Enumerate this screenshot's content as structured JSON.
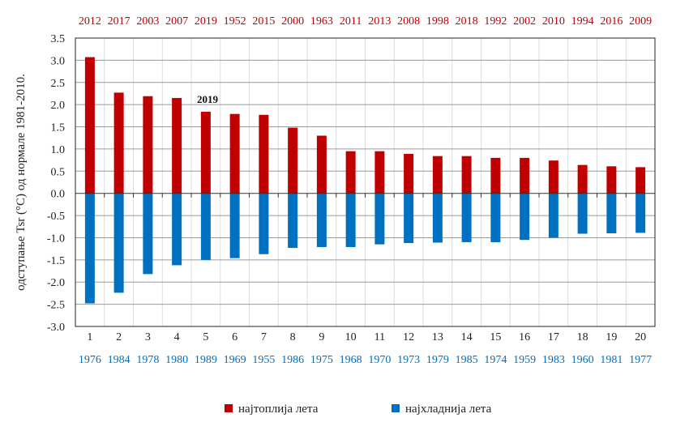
{
  "chart_data": {
    "type": "bar",
    "title": "",
    "xlabel": "",
    "ylabel": "одступање Tsr (°C)  од  нормале 1981-2010.",
    "ylim": [
      -3.0,
      3.5
    ],
    "yticks": [
      "3.5",
      "3.0",
      "2.5",
      "2.0",
      "1.5",
      "1.0",
      "0.5",
      "0.0",
      "-0.5",
      "-1.0",
      "-1.5",
      "-2.0",
      "-2.5",
      "-3.0"
    ],
    "grid": true,
    "legend_position": "bottom",
    "categories": [
      "1",
      "2",
      "3",
      "4",
      "5",
      "6",
      "7",
      "8",
      "9",
      "10",
      "11",
      "12",
      "13",
      "14",
      "15",
      "16",
      "17",
      "18",
      "19",
      "20"
    ],
    "series": [
      {
        "name": "најтоплија лета",
        "color": "#c00000",
        "years": [
          "2012",
          "2017",
          "2003",
          "2007",
          "2019",
          "1952",
          "2015",
          "2000",
          "1963",
          "2011",
          "2013",
          "2008",
          "1998",
          "2018",
          "1992",
          "2002",
          "2010",
          "1994",
          "2016",
          "2009"
        ],
        "values": [
          3.07,
          2.27,
          2.19,
          2.15,
          1.84,
          1.79,
          1.77,
          1.48,
          1.3,
          0.95,
          0.95,
          0.89,
          0.84,
          0.84,
          0.8,
          0.8,
          0.74,
          0.64,
          0.61,
          0.59
        ]
      },
      {
        "name": "најхладнија лета",
        "color": "#0070c0",
        "years": [
          "1976",
          "1984",
          "1978",
          "1980",
          "1989",
          "1969",
          "1955",
          "1986",
          "1975",
          "1968",
          "1970",
          "1973",
          "1979",
          "1985",
          "1974",
          "1959",
          "1983",
          "1960",
          "1981",
          "1977"
        ],
        "values": [
          -2.48,
          -2.24,
          -1.82,
          -1.62,
          -1.5,
          -1.46,
          -1.37,
          -1.23,
          -1.21,
          -1.21,
          -1.15,
          -1.12,
          -1.11,
          -1.1,
          -1.1,
          -1.05,
          -1.0,
          -0.91,
          -0.9,
          -0.89
        ]
      }
    ],
    "annotations": [
      {
        "text": "2019",
        "category": "5"
      }
    ]
  }
}
